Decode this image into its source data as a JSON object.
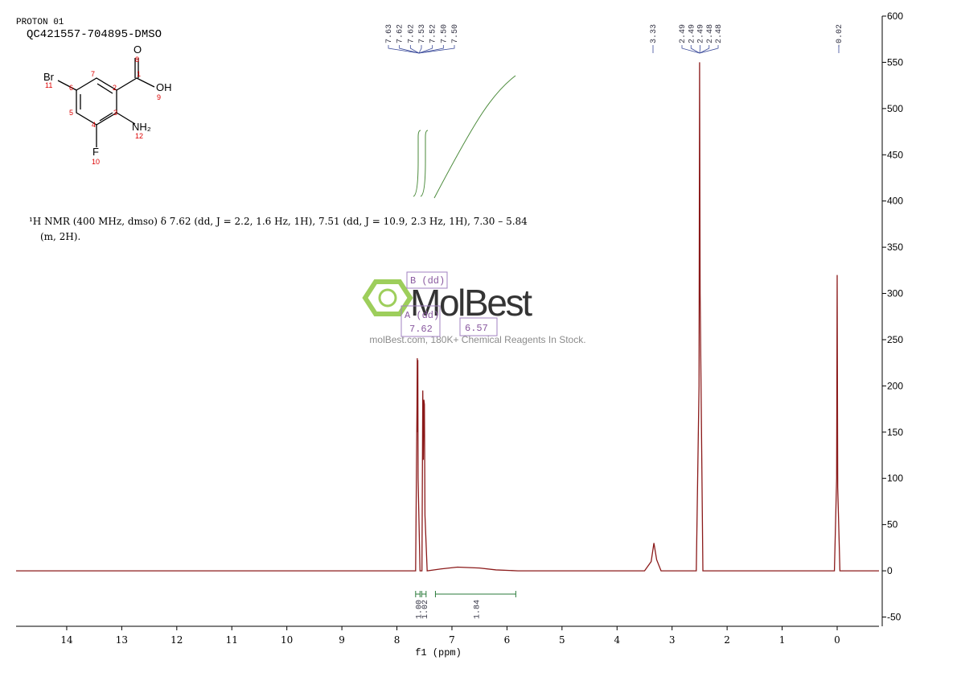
{
  "header": {
    "experiment": "PROTON 01",
    "sample": "QC421557-704895-DMSO"
  },
  "structure": {
    "labels": [
      "O",
      "8",
      "1",
      "OH",
      "9",
      "Br",
      "11",
      "6",
      "7",
      "2",
      "3",
      "5",
      "4",
      "NH₂",
      "12",
      "F",
      "10"
    ]
  },
  "description": [
    "¹H NMR (400 MHz, dmso) δ 7.62 (dd, J = 2.2, 1.6 Hz, 1H), 7.51 (dd, J = 10.9, 2.3 Hz, 1H), 7.30 – 5.84",
    "(m, 2H)."
  ],
  "watermark": {
    "brand": "MolBest",
    "slogan": "molBest.com, 180K+ Chemical Reagents In Stock."
  },
  "multiplets": [
    "B (dd)",
    "A (dd)",
    "7.62",
    "6.57"
  ],
  "chart_data": {
    "type": "line",
    "x_label": "f1 (ppm)",
    "x": [
      14.92,
      8.0,
      7.66,
      7.635,
      7.63,
      7.625,
      7.62,
      7.615,
      7.58,
      7.545,
      7.53,
      7.52,
      7.51,
      7.5,
      7.49,
      7.45,
      7.2,
      6.9,
      6.5,
      6.2,
      5.8,
      3.5,
      3.38,
      3.33,
      3.28,
      3.2,
      2.56,
      2.51,
      2.5,
      2.49,
      2.44,
      0.05,
      0.01,
      0.0,
      -0.01,
      -0.05,
      -0.76
    ],
    "series": [
      {
        "name": "spectrum",
        "color": "#8b1a1a",
        "values": [
          0,
          0,
          0,
          180,
          230,
          150,
          228,
          100,
          0,
          0,
          195,
          120,
          185,
          180,
          60,
          0,
          2,
          4,
          3,
          1,
          0,
          0,
          10,
          30,
          12,
          0,
          0,
          200,
          550,
          300,
          0,
          0,
          100,
          320,
          90,
          0,
          0
        ]
      }
    ],
    "xlim": [
      14.92,
      -0.76
    ],
    "xticks": [
      14,
      13,
      12,
      11,
      10,
      9,
      8,
      7,
      6,
      5,
      4,
      3,
      2,
      1,
      0
    ],
    "ylim": [
      -60,
      600
    ],
    "yticks": [
      -50,
      0,
      50,
      100,
      150,
      200,
      250,
      300,
      350,
      400,
      450,
      500,
      550,
      600
    ],
    "peak_labels": [
      [
        "7.63",
        "7.62",
        "7.62",
        "7.53",
        "7.52",
        "7.50",
        "7.50"
      ],
      [
        "3.33"
      ],
      [
        "2.49",
        "2.49",
        "2.49",
        "2.48",
        "2.48"
      ],
      [
        "-0.02"
      ]
    ],
    "integrals": [
      {
        "range": [
          7.66,
          7.58
        ],
        "label": "1.00"
      },
      {
        "range": [
          7.55,
          7.47
        ],
        "label": "1.02"
      },
      {
        "range": [
          7.3,
          5.84
        ],
        "label": "1.84"
      }
    ]
  }
}
